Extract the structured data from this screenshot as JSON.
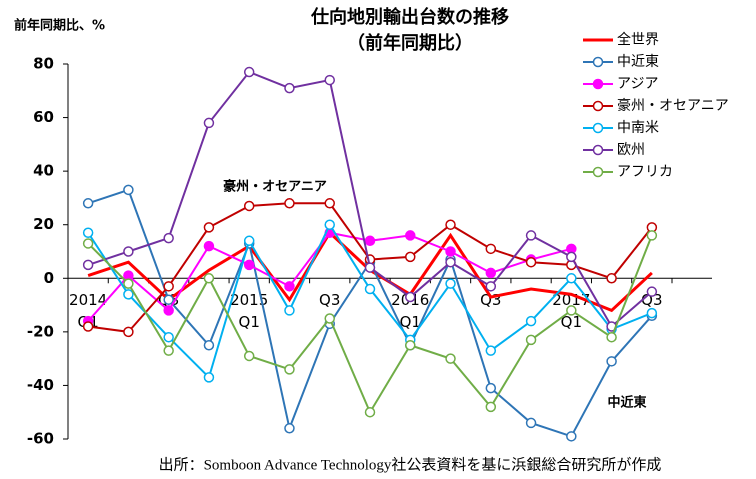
{
  "chart_data": {
    "type": "line",
    "title": "仕向地別輸出台数の推移",
    "subtitle": "（前年同期比）",
    "y_axis_label": "前年同期比、%",
    "source": "出所：Somboon Advance Technology社公表資料を基に浜銀総合研究所が作成",
    "annotations": [
      "豪州・オセアニア",
      "中近東"
    ],
    "categories": [
      "Q1",
      null,
      "Q3",
      null,
      "Q1",
      null,
      "Q3",
      null,
      "Q1",
      null,
      "Q3",
      null,
      "Q1",
      null,
      "Q3"
    ],
    "category_years": [
      "2014",
      null,
      null,
      null,
      "2015",
      null,
      null,
      null,
      "2016",
      null,
      null,
      null,
      "2017",
      null,
      null
    ],
    "ylim": [
      -60,
      80
    ],
    "yticks": [
      -60,
      -40,
      -20,
      0,
      20,
      40,
      60,
      80
    ],
    "legend": "upper right",
    "series": [
      {
        "name": "全世界",
        "color": "#ff0000",
        "marker": "none",
        "values": [
          1,
          6,
          -8,
          3,
          12,
          -8,
          17,
          3,
          -6,
          16,
          -7,
          -4,
          -6,
          -12,
          2
        ]
      },
      {
        "name": "中近東",
        "color": "#2e75b6",
        "marker": "open",
        "values": [
          28,
          33,
          -8,
          -25,
          13,
          -56,
          -17,
          6,
          -25,
          7,
          -41,
          -54,
          -59,
          -31,
          -14
        ]
      },
      {
        "name": "アジア",
        "color": "#ff00ff",
        "marker": "filled",
        "values": [
          -16,
          1,
          -12,
          12,
          5,
          -3,
          17,
          14,
          16,
          10,
          2,
          7,
          11,
          null,
          null
        ]
      },
      {
        "name": "豪州・オセアニア",
        "color": "#c00000",
        "marker": "open",
        "values": [
          -18,
          -20,
          -3,
          19,
          27,
          28,
          28,
          7,
          8,
          20,
          11,
          6,
          5,
          0,
          19
        ]
      },
      {
        "name": "中南米",
        "color": "#00b0f0",
        "marker": "open",
        "values": [
          17,
          -6,
          -22,
          -37,
          14,
          -12,
          20,
          -4,
          -23,
          -2,
          -27,
          -16,
          0,
          -19,
          -13
        ]
      },
      {
        "name": "欧州",
        "color": "#7030a0",
        "marker": "open",
        "values": [
          5,
          10,
          15,
          58,
          77,
          71,
          74,
          4,
          -7,
          6,
          -3,
          16,
          8,
          -18,
          -5
        ]
      },
      {
        "name": "アフリカ",
        "color": "#70ad47",
        "marker": "open",
        "values": [
          13,
          -2,
          -27,
          0,
          -29,
          -34,
          -15,
          -50,
          -25,
          -30,
          -48,
          -23,
          -12,
          -22,
          16
        ]
      }
    ]
  }
}
